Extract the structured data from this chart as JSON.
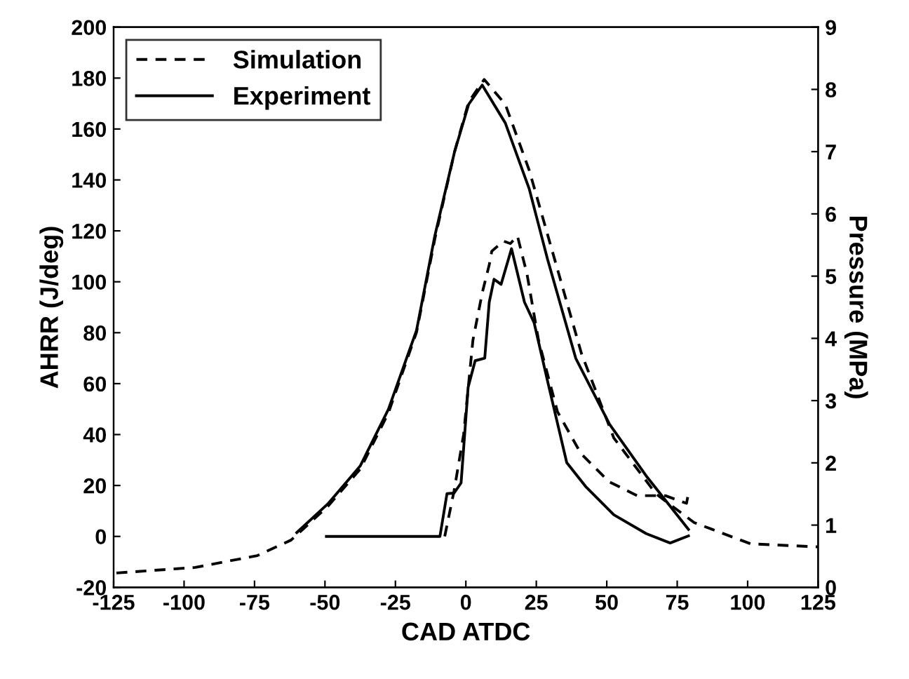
{
  "chart_data": {
    "type": "line",
    "xlabel": "CAD ATDC",
    "ylabel": "AHRR (J/deg)",
    "y2label": "Pressure (MPa)",
    "xlim": [
      -125,
      125
    ],
    "xticks": [
      -125,
      -100,
      -75,
      -50,
      -25,
      0,
      25,
      50,
      75,
      100,
      125
    ],
    "ylim": [
      -20,
      200
    ],
    "yticks": [
      -20,
      0,
      20,
      40,
      60,
      80,
      100,
      120,
      140,
      160,
      180,
      200
    ],
    "y2lim": [
      0,
      9
    ],
    "y2ticks": [
      0,
      1,
      2,
      3,
      4,
      5,
      6,
      7,
      8,
      9
    ],
    "legend": "top left",
    "grid": false,
    "marker": "none",
    "series": [
      {
        "name": "Simulation",
        "color": "#000000",
        "line_style": "dashed",
        "x": [
          -7.5,
          -4.2,
          -0.8,
          2.5,
          5.8,
          8.3,
          9.2,
          13.3,
          15.8,
          18.3,
          21.7,
          25.8,
          32.5,
          40.8,
          50.8,
          60.8,
          70.8,
          78.3,
          79
        ],
        "values": [
          0,
          17.8,
          40,
          77,
          95.6,
          106.7,
          112,
          116,
          115,
          118,
          103,
          77,
          49,
          32.6,
          21.5,
          16,
          16,
          13,
          17
        ]
      },
      {
        "name": "Experiment",
        "color": "#000000",
        "line_style": "solid",
        "x": [
          -49.5,
          -9.2,
          -6.7,
          -4.2,
          -1.7,
          0.8,
          3.3,
          6.7,
          8.3,
          10,
          12.5,
          16.2,
          20.8,
          24.2,
          29.2,
          35.8,
          42.5,
          52.5,
          64,
          72.5,
          79
        ],
        "values": [
          0,
          0,
          16.8,
          17,
          21,
          58.5,
          69,
          70,
          92,
          101,
          99,
          113,
          92,
          84,
          60,
          29,
          19.6,
          8.5,
          1.1,
          -2.6,
          0.2
        ]
      },
      {
        "color": "#000000",
        "line_style": "dashed",
        "axis": "y2",
        "x": [
          -124,
          -96,
          -74,
          -62,
          -49,
          -37.5,
          -27.5,
          -17.5,
          -11,
          -4,
          1,
          6.5,
          14,
          22.5,
          31,
          41,
          52.5,
          67.5,
          81,
          101,
          125
        ],
        "values": [
          0.23,
          0.32,
          0.51,
          0.76,
          1.3,
          1.9,
          2.8,
          4.1,
          5.6,
          7.0,
          7.8,
          8.16,
          7.76,
          6.7,
          5.35,
          3.76,
          2.4,
          1.5,
          1.04,
          0.7,
          0.65
        ]
      },
      {
        "color": "#000000",
        "line_style": "solid",
        "axis": "y2",
        "x": [
          -60,
          -49,
          -37.5,
          -27.5,
          -17.5,
          -11,
          -4,
          1,
          5.8,
          14,
          22.5,
          29,
          39,
          51,
          64,
          79
        ],
        "values": [
          0.88,
          1.34,
          1.95,
          2.86,
          4.13,
          5.65,
          7.0,
          7.76,
          8.07,
          7.46,
          6.4,
          5.27,
          3.68,
          2.62,
          1.79,
          0.93
        ]
      }
    ]
  }
}
